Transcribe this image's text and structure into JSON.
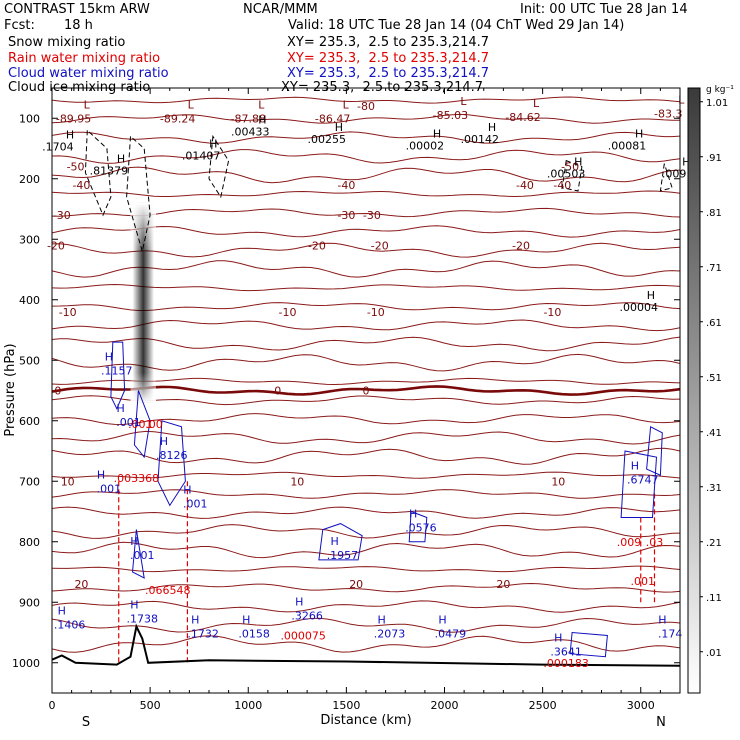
{
  "header": {
    "model": "CONTRAST 15km ARW",
    "center": "NCAR/MMM",
    "init": "Init: 00 UTC Tue 28 Jan 14",
    "fcst_label": "Fcst:",
    "fcst_value": "18 h",
    "valid": "Valid: 18 UTC Tue 28 Jan 14 (04 ChT Wed 29 Jan 14)",
    "fields": [
      {
        "name": "Snow mixing ratio",
        "xy": "XY= 235.3,  2.5 to 235.3,214.7",
        "color": "#000000"
      },
      {
        "name": "Rain water mixing ratio",
        "xy": "XY= 235.3,  2.5 to 235.3,214.7",
        "color": "#e00000"
      },
      {
        "name": "Cloud water mixing ratio",
        "xy": "XY= 235.3,  2.5 to 235.3,214.7",
        "color": "#1010c0"
      },
      {
        "name": "Cloud ice mixing ratio",
        "xy": "XY= 235.3,  2.5 to 235.3,214.7",
        "color": "#000000"
      }
    ]
  },
  "chart_data": {
    "type": "cross-section contour",
    "xlabel": "Distance (km)",
    "ylabel": "Pressure (hPa)",
    "xlim": [
      0,
      3200
    ],
    "ylim": [
      1050,
      50
    ],
    "x_ticks": [
      0,
      500,
      1000,
      1500,
      2000,
      2500,
      3000
    ],
    "y_ticks": [
      100,
      200,
      300,
      400,
      500,
      600,
      700,
      800,
      900,
      1000
    ],
    "endpoints": {
      "left": "S",
      "right": "N"
    },
    "colorbar": {
      "unit": "g kg⁻¹",
      "levels": [
        ".01",
        ".11",
        ".21",
        ".31",
        ".41",
        ".51",
        ".61",
        ".71",
        ".81",
        ".91",
        "1.01"
      ]
    },
    "temperature_contours": [
      {
        "label": "-80",
        "p": 80,
        "xl": [
          1600
        ]
      },
      {
        "label": "-50",
        "p": 180,
        "xl": [
          120,
          2640
        ]
      },
      {
        "label": "-40",
        "p": 210,
        "xl": [
          150,
          1500,
          2410,
          2600
        ]
      },
      {
        "label": "-30",
        "p": 260,
        "xl": [
          50,
          1500,
          1630
        ]
      },
      {
        "label": "-20",
        "p": 310,
        "xl": [
          20,
          1350,
          1670,
          2390
        ]
      },
      {
        "label": "-10",
        "p": 420,
        "xl": [
          80,
          1200,
          1650,
          2550
        ]
      },
      {
        "label": "0",
        "p": 550,
        "xl": [
          30,
          1150,
          1600
        ]
      },
      {
        "label": "10",
        "p": 700,
        "xl": [
          80,
          1250,
          2580
        ]
      },
      {
        "label": "20",
        "p": 870,
        "xl": [
          150,
          1550,
          2300
        ]
      }
    ],
    "temperature_minima": [
      {
        "label": "-89.95",
        "x": 110,
        "p": 100
      },
      {
        "label": "-89.24",
        "x": 640,
        "p": 100
      },
      {
        "label": "-87.88",
        "x": 1000,
        "p": 100
      },
      {
        "label": "-86.47",
        "x": 1430,
        "p": 100
      },
      {
        "label": "-85.03",
        "x": 2030,
        "p": 95
      },
      {
        "label": "-84.62",
        "x": 2400,
        "p": 98
      },
      {
        "label": "-83.3",
        "x": 3140,
        "p": 92
      }
    ],
    "snow_labels": [
      {
        "label": ".81379",
        "x": 290,
        "p": 190
      },
      {
        "label": ".01407",
        "x": 760,
        "p": 165
      },
      {
        "label": ".00433",
        "x": 1010,
        "p": 125
      },
      {
        "label": ".00255",
        "x": 1400,
        "p": 138
      },
      {
        "label": ".00002",
        "x": 1900,
        "p": 148
      },
      {
        "label": ".00142",
        "x": 2180,
        "p": 138
      },
      {
        "label": ".00081",
        "x": 2930,
        "p": 148
      },
      {
        "label": ".00503",
        "x": 2620,
        "p": 195
      },
      {
        "label": ".009",
        "x": 3170,
        "p": 195
      },
      {
        "label": ".00004",
        "x": 2990,
        "p": 415
      },
      {
        "label": ".1704",
        "x": 30,
        "p": 150
      }
    ],
    "rain_labels": [
      {
        "label": ".001",
        "x": 450,
        "p": 605
      },
      {
        "label": ".00",
        "x": 520,
        "p": 605
      },
      {
        "label": ".003368",
        "x": 430,
        "p": 695
      },
      {
        "label": ".066548",
        "x": 590,
        "p": 880
      },
      {
        "label": ".000075",
        "x": 1280,
        "p": 955
      },
      {
        "label": ".009",
        "x": 2940,
        "p": 800
      },
      {
        "label": ".03",
        "x": 3070,
        "p": 800
      },
      {
        "label": ".001",
        "x": 3010,
        "p": 865
      },
      {
        "label": ".000183",
        "x": 2620,
        "p": 1000
      }
    ],
    "cloud_water_labels": [
      {
        "label": ".1157",
        "x": 330,
        "p": 520
      },
      {
        "label": ".001",
        "x": 390,
        "p": 605
      },
      {
        "label": ".8126",
        "x": 610,
        "p": 660
      },
      {
        "label": ".001",
        "x": 290,
        "p": 715
      },
      {
        "label": ".001",
        "x": 730,
        "p": 740
      },
      {
        "label": ".6747",
        "x": 3010,
        "p": 700
      },
      {
        "label": ".0576",
        "x": 1880,
        "p": 780
      },
      {
        "label": ".1957",
        "x": 1480,
        "p": 825
      },
      {
        "label": ".001",
        "x": 460,
        "p": 825
      },
      {
        "label": ".1406",
        "x": 90,
        "p": 940
      },
      {
        "label": ".1738",
        "x": 460,
        "p": 930
      },
      {
        "label": ".1732",
        "x": 770,
        "p": 955
      },
      {
        "label": ".0158",
        "x": 1030,
        "p": 955
      },
      {
        "label": ".3266",
        "x": 1300,
        "p": 925
      },
      {
        "label": ".2073",
        "x": 1720,
        "p": 955
      },
      {
        "label": ".0479",
        "x": 2030,
        "p": 955
      },
      {
        "label": ".3641",
        "x": 2620,
        "p": 985
      },
      {
        "label": ".174",
        "x": 3150,
        "p": 955
      }
    ]
  }
}
